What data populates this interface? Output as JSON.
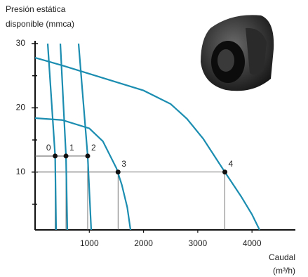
{
  "chart_data": {
    "type": "line",
    "y_label": [
      "Presión estática",
      "disponible (mmca)"
    ],
    "x_label": [
      "Caudal",
      "(m³/h)"
    ],
    "xlim": [
      0,
      4800
    ],
    "ylim": [
      1,
      30
    ],
    "xticks": [
      1000,
      2000,
      3000,
      4000
    ],
    "yticks": [
      10,
      20,
      30
    ],
    "minor_yticks": [
      5,
      15,
      25
    ],
    "series": [
      {
        "color": "#1b8db0",
        "x": [
          0,
          500,
          1000,
          1500,
          2000,
          2500,
          2800,
          3100,
          3500,
          3800,
          4000,
          4140
        ],
        "values": [
          27.8,
          26.6,
          25.3,
          24,
          22.7,
          20.6,
          18.3,
          15.2,
          10,
          6.2,
          3.4,
          1
        ]
      },
      {
        "color": "#1b8db0",
        "x": [
          0,
          500,
          1000,
          1250,
          1500,
          1600,
          1700,
          1760
        ],
        "values": [
          18.4,
          18.1,
          16.8,
          14.8,
          10.6,
          8,
          4.5,
          1
        ]
      },
      {
        "color": "#1b8db0",
        "x": [
          233,
          370,
          388
        ],
        "values": [
          30,
          12.5,
          1
        ]
      },
      {
        "color": "#1b8db0",
        "x": [
          466,
          570,
          595
        ],
        "values": [
          30,
          12.5,
          1
        ]
      },
      {
        "color": "#1b8db0",
        "x": [
          802,
          970,
          1035
        ],
        "values": [
          30,
          12.5,
          1
        ]
      }
    ],
    "points": {
      "labels": [
        "0",
        "1",
        "2",
        "3",
        "4"
      ],
      "x": [
        370,
        570,
        970,
        1530,
        3500
      ],
      "values": [
        12.5,
        12.5,
        12.5,
        10,
        10
      ],
      "color": "#111"
    }
  }
}
